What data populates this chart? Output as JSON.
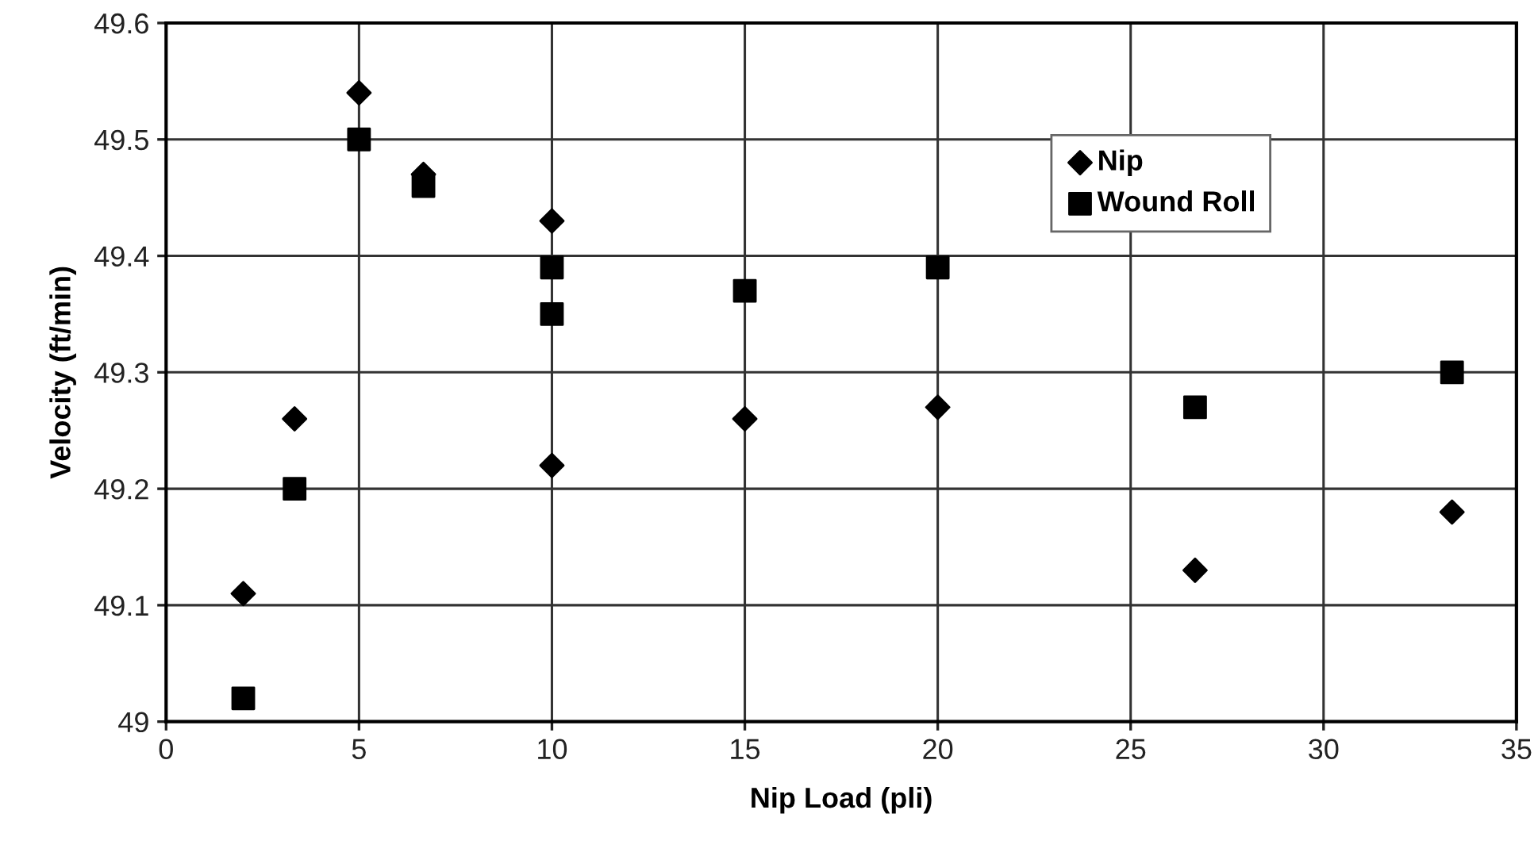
{
  "chart_data": {
    "type": "scatter",
    "xlabel": "Nip Load (pli)",
    "ylabel": "Velocity (ft/min)",
    "xlim": [
      0,
      35
    ],
    "xticks": [
      0,
      5,
      10,
      15,
      20,
      25,
      30,
      35
    ],
    "ylim": [
      49,
      49.6
    ],
    "yticks": [
      {
        "value": 49,
        "label": "49"
      },
      49.1,
      49.2,
      49.3,
      49.4,
      49.5,
      49.6
    ],
    "grid": true,
    "legend": "top right",
    "series": [
      {
        "name": "Nip",
        "color": "#000000",
        "marker": "diamond",
        "x": [
          2,
          3.33,
          5,
          6.67,
          10,
          10,
          15,
          20,
          26.67,
          33.33
        ],
        "values": [
          49.11,
          49.26,
          49.54,
          49.47,
          49.43,
          49.22,
          49.26,
          49.27,
          49.13,
          49.18
        ]
      },
      {
        "name": "Wound Roll",
        "color": "#000000",
        "marker": "square",
        "x": [
          2,
          3.33,
          5,
          6.67,
          10,
          10,
          15,
          20,
          26.67,
          33.33
        ],
        "values": [
          49.02,
          49.2,
          49.5,
          49.46,
          49.39,
          49.35,
          49.37,
          49.39,
          49.27,
          49.3
        ]
      }
    ]
  }
}
